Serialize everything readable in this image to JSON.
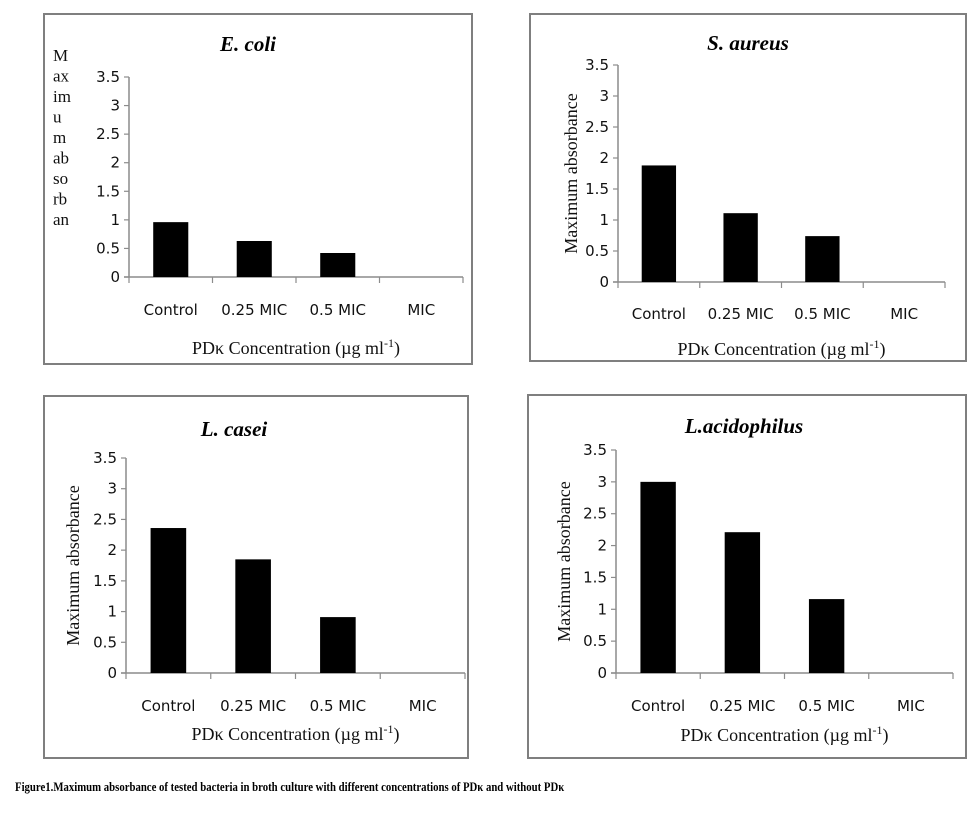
{
  "caption": "Figure1.Maximum absorbance of tested bacteria in broth culture with different concentrations of PDκ and without PDκ",
  "chart_data": [
    {
      "type": "bar",
      "title": "E. coli",
      "categories": [
        "Control",
        "0.25 MIC",
        "0.5 MIC",
        "MIC"
      ],
      "values": [
        0.96,
        0.63,
        0.42,
        0
      ],
      "xlabel": "PDκ Concentration (µg ml-1)",
      "ylabel": "Maximum absorbance",
      "ylabel_wrapped": [
        "M",
        "ax",
        "im",
        "u",
        "m",
        "ab",
        "so",
        "rb",
        "an"
      ],
      "yticks": [
        "0",
        "0.5",
        "1",
        "1.5",
        "2",
        "2.5",
        "3",
        "3.5"
      ],
      "ylim": [
        0,
        3.5
      ],
      "grid": false,
      "bar_color": "#000000"
    },
    {
      "type": "bar",
      "title": "S. aureus",
      "categories": [
        "Control",
        "0.25 MIC",
        "0.5 MIC",
        "MIC"
      ],
      "values": [
        1.88,
        1.11,
        0.74,
        0
      ],
      "xlabel": "PDκ Concentration (µg ml-1)",
      "ylabel": "Maximum absorbance",
      "yticks": [
        "0",
        "0.5",
        "1",
        "1.5",
        "2",
        "2.5",
        "3",
        "3.5"
      ],
      "ylim": [
        0,
        3.5
      ],
      "grid": false,
      "bar_color": "#000000"
    },
    {
      "type": "bar",
      "title": "L. casei",
      "categories": [
        "Control",
        "0.25 MIC",
        "0.5 MIC",
        "MIC"
      ],
      "values": [
        2.36,
        1.85,
        0.91,
        0
      ],
      "xlabel": "PDκ Concentration (µg ml-1)",
      "ylabel": "Maximum absorbance",
      "yticks": [
        "0",
        "0.5",
        "1",
        "1.5",
        "2",
        "2.5",
        "3",
        "3.5"
      ],
      "ylim": [
        0,
        3.5
      ],
      "grid": false,
      "bar_color": "#000000"
    },
    {
      "type": "bar",
      "title": "L.acidophilus",
      "categories": [
        "Control",
        "0.25 MIC",
        "0.5 MIC",
        "MIC"
      ],
      "values": [
        3.0,
        2.21,
        1.16,
        0
      ],
      "xlabel": "PDκ Concentration (µg ml-1)",
      "ylabel": "Maximum absorbance",
      "yticks": [
        "0",
        "0.5",
        "1",
        "1.5",
        "2",
        "2.5",
        "3",
        "3.5"
      ],
      "ylim": [
        0,
        3.5
      ],
      "grid": false,
      "bar_color": "#000000"
    }
  ]
}
